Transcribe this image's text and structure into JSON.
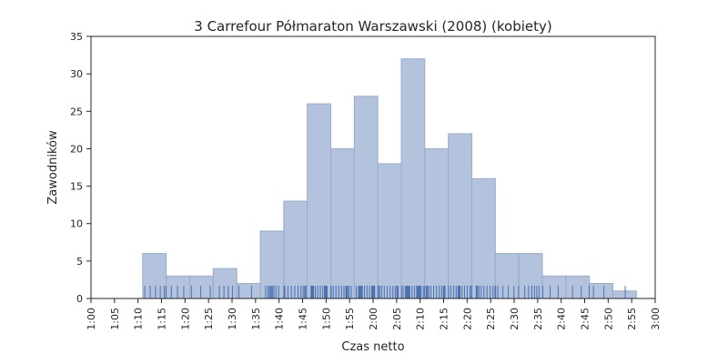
{
  "chart_data": {
    "type": "bar",
    "title": "3 Carrefour Półmaraton Warszawski (2008) (kobiety)",
    "xlabel": "Czas netto",
    "ylabel": "Zawodników",
    "x_unit": "minutes",
    "xlim": [
      60,
      180
    ],
    "ylim": [
      0,
      35
    ],
    "x_ticks": [
      60,
      65,
      70,
      75,
      80,
      85,
      90,
      95,
      100,
      105,
      110,
      115,
      120,
      125,
      130,
      135,
      140,
      145,
      150,
      155,
      160,
      165,
      170,
      175,
      180
    ],
    "x_tick_labels": [
      "1:00",
      "1:05",
      "1:10",
      "1:15",
      "1:20",
      "1:25",
      "1:30",
      "1:35",
      "1:40",
      "1:45",
      "1:50",
      "1:55",
      "2:00",
      "2:05",
      "2:10",
      "2:15",
      "2:20",
      "2:25",
      "2:30",
      "2:35",
      "2:40",
      "2:45",
      "2:50",
      "2:55",
      "3:00"
    ],
    "y_ticks": [
      0,
      5,
      10,
      15,
      20,
      25,
      30,
      35
    ],
    "bin_edges": [
      71,
      76,
      81,
      86,
      91,
      96,
      101,
      106,
      111,
      116,
      121,
      126,
      131,
      136,
      141,
      146,
      151,
      156,
      161,
      166,
      171,
      176
    ],
    "values": [
      6,
      3,
      3,
      4,
      2,
      9,
      13,
      26,
      20,
      27,
      18,
      32,
      20,
      22,
      16,
      6,
      6,
      3,
      3,
      2,
      1
    ],
    "grid": false,
    "colors": {
      "bar": "#b3c3de",
      "rug": "#4c72b0"
    }
  }
}
